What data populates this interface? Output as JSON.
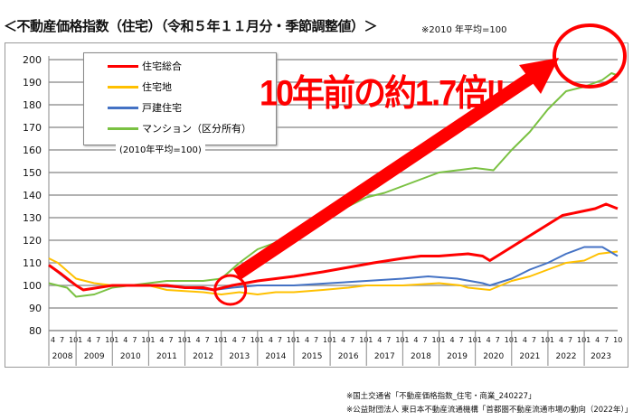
{
  "chart_data": {
    "type": "line",
    "title": "＜不動産価格指数（住宅）（令和５年１１月分・季節調整値）＞",
    "note": "※2010 年平均=100",
    "base_label": "(2010年平均=100)",
    "ylim": [
      80,
      200
    ],
    "yticks": [
      80,
      90,
      100,
      110,
      120,
      130,
      140,
      150,
      160,
      170,
      180,
      190,
      200
    ],
    "xlim": [
      2008.25,
      2023.92
    ],
    "years": [
      "2008",
      "2009",
      "2010",
      "2011",
      "2012",
      "2013",
      "2014",
      "2015",
      "2016",
      "2017",
      "2018",
      "2019",
      "2020",
      "2021",
      "2022",
      "2023"
    ],
    "months": [
      "1",
      "4",
      "7",
      "10"
    ],
    "grid": true,
    "legend_position": "top-left",
    "series": [
      {
        "name": "住宅総合",
        "color": "#ff0000",
        "x": [
          2008.25,
          2008.6,
          2009.0,
          2009.2,
          2009.6,
          2010,
          2010.5,
          2011,
          2011.5,
          2012,
          2012.5,
          2012.8,
          2013.3,
          2014,
          2014.5,
          2015,
          2015.8,
          2016.5,
          2017.2,
          2018,
          2018.5,
          2019,
          2019.8,
          2020.2,
          2020.4,
          2020.9,
          2021.3,
          2021.9,
          2022.4,
          2023,
          2023.3,
          2023.6,
          2023.92
        ],
        "y": [
          109,
          105,
          100,
          98,
          99,
          100,
          100,
          100,
          100,
          99,
          99,
          98,
          100,
          102,
          103,
          104,
          106,
          108,
          110,
          112,
          113,
          113,
          114,
          113,
          111,
          116,
          120,
          126,
          131,
          133,
          134,
          136,
          134
        ]
      },
      {
        "name": "住宅地",
        "color": "#ffc000",
        "x": [
          2008.25,
          2008.5,
          2009,
          2009.5,
          2010,
          2011,
          2011.5,
          2012.5,
          2013,
          2013.5,
          2014,
          2014.5,
          2015,
          2015.8,
          2016.5,
          2017,
          2018,
          2019,
          2019.6,
          2019.8,
          2020.4,
          2021,
          2021.5,
          2022,
          2022.5,
          2023,
          2023.4,
          2023.92
        ],
        "y": [
          112,
          110,
          103,
          101,
          100,
          100,
          98,
          97,
          96,
          97,
          96,
          97,
          97,
          98,
          99,
          100,
          100,
          101,
          100,
          99,
          98,
          102,
          104,
          107,
          110,
          111,
          114,
          115
        ]
      },
      {
        "name": "戸建住宅",
        "color": "#4472c4",
        "x": [
          2008.25,
          2008.8,
          2009.2,
          2009.6,
          2010,
          2011,
          2012,
          2012.8,
          2013.3,
          2014,
          2015,
          2016,
          2017,
          2018,
          2018.7,
          2019.5,
          2020.2,
          2020.4,
          2021,
          2021.5,
          2022,
          2022.5,
          2023,
          2023.5,
          2023.92
        ],
        "y": [
          109,
          102,
          98,
          99,
          100,
          100,
          99,
          98,
          99,
          100,
          100,
          101,
          102,
          103,
          104,
          103,
          101,
          100,
          103,
          107,
          110,
          114,
          117,
          117,
          113
        ]
      },
      {
        "name": "マンション（区分所有）",
        "color": "#7ac142",
        "x": [
          2008.25,
          2008.75,
          2009.0,
          2009.5,
          2010,
          2010.5,
          2011,
          2011.5,
          2012,
          2012.5,
          2013,
          2013.5,
          2014,
          2014.5,
          2015,
          2015.5,
          2016,
          2016.5,
          2017,
          2017.5,
          2018,
          2018.5,
          2019,
          2019.5,
          2020,
          2020.5,
          2021,
          2021.5,
          2022,
          2022.5,
          2023,
          2023.5,
          2023.75,
          2023.92
        ],
        "y": [
          101,
          99,
          95,
          96,
          99,
          100,
          101,
          102,
          102,
          102,
          103,
          110,
          116,
          119,
          123,
          128,
          132,
          135,
          139,
          141,
          144,
          147,
          150,
          151,
          152,
          151,
          160,
          168,
          178,
          186,
          188,
          191,
          194,
          193
        ]
      }
    ],
    "annotation": "10年前の約1.7倍!!"
  },
  "footnotes": [
    "※国土交通省「不動産価格指数_住宅・商業_240227」",
    "※公益財団法人 東日本不動産流通機構「首都圏不動産流通市場の動向（2022年）」"
  ]
}
